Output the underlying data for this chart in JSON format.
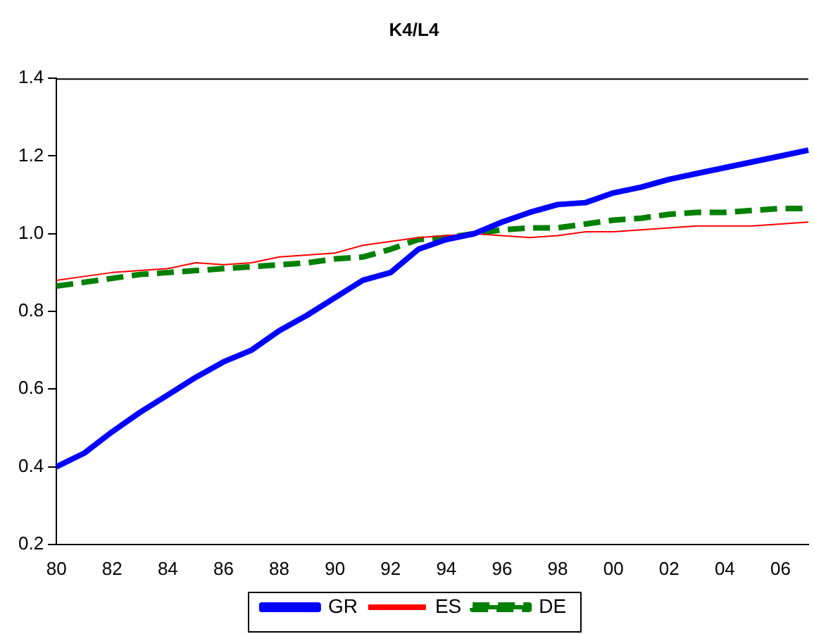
{
  "chart_data": {
    "type": "line",
    "title": "K4/L4",
    "categories": [
      "80",
      null,
      "82",
      null,
      "84",
      null,
      "86",
      null,
      "88",
      null,
      "90",
      null,
      "92",
      null,
      "94",
      null,
      "96",
      null,
      "98",
      null,
      "00",
      null,
      "02",
      null,
      "04",
      null,
      "06",
      null
    ],
    "series": [
      {
        "name": "GR",
        "color": "#0000ff",
        "line_style": "solid",
        "values": [
          0.4,
          0.435,
          0.49,
          0.54,
          0.585,
          0.63,
          0.67,
          0.7,
          0.75,
          0.79,
          0.835,
          0.88,
          0.9,
          0.96,
          0.985,
          1.0,
          1.03,
          1.055,
          1.075,
          1.08,
          1.105,
          1.12,
          1.14,
          1.155,
          1.17,
          1.185,
          1.2,
          1.215
        ]
      },
      {
        "name": "ES",
        "color": "#ff0000",
        "line_style": "solid",
        "values": [
          0.88,
          0.89,
          0.9,
          0.905,
          0.91,
          0.925,
          0.92,
          0.925,
          0.94,
          0.945,
          0.95,
          0.97,
          0.98,
          0.99,
          0.995,
          1.0,
          0.995,
          0.99,
          0.995,
          1.005,
          1.005,
          1.01,
          1.015,
          1.02,
          1.02,
          1.02,
          1.025,
          1.03
        ]
      },
      {
        "name": "DE",
        "color": "#008000",
        "line_style": "dashed",
        "values": [
          0.865,
          0.875,
          0.885,
          0.895,
          0.9,
          0.905,
          0.91,
          0.915,
          0.92,
          0.925,
          0.935,
          0.94,
          0.96,
          0.985,
          0.99,
          1.0,
          1.01,
          1.015,
          1.015,
          1.025,
          1.035,
          1.04,
          1.05,
          1.055,
          1.055,
          1.06,
          1.065,
          1.065
        ]
      }
    ],
    "ylim": [
      0.2,
      1.4
    ],
    "yticks": [
      0.2,
      0.4,
      0.6,
      0.8,
      {
        "value": 1,
        "label": "1.0"
      },
      1.2,
      1.4
    ],
    "grid": false,
    "legend": "bottom",
    "marker": "none"
  }
}
